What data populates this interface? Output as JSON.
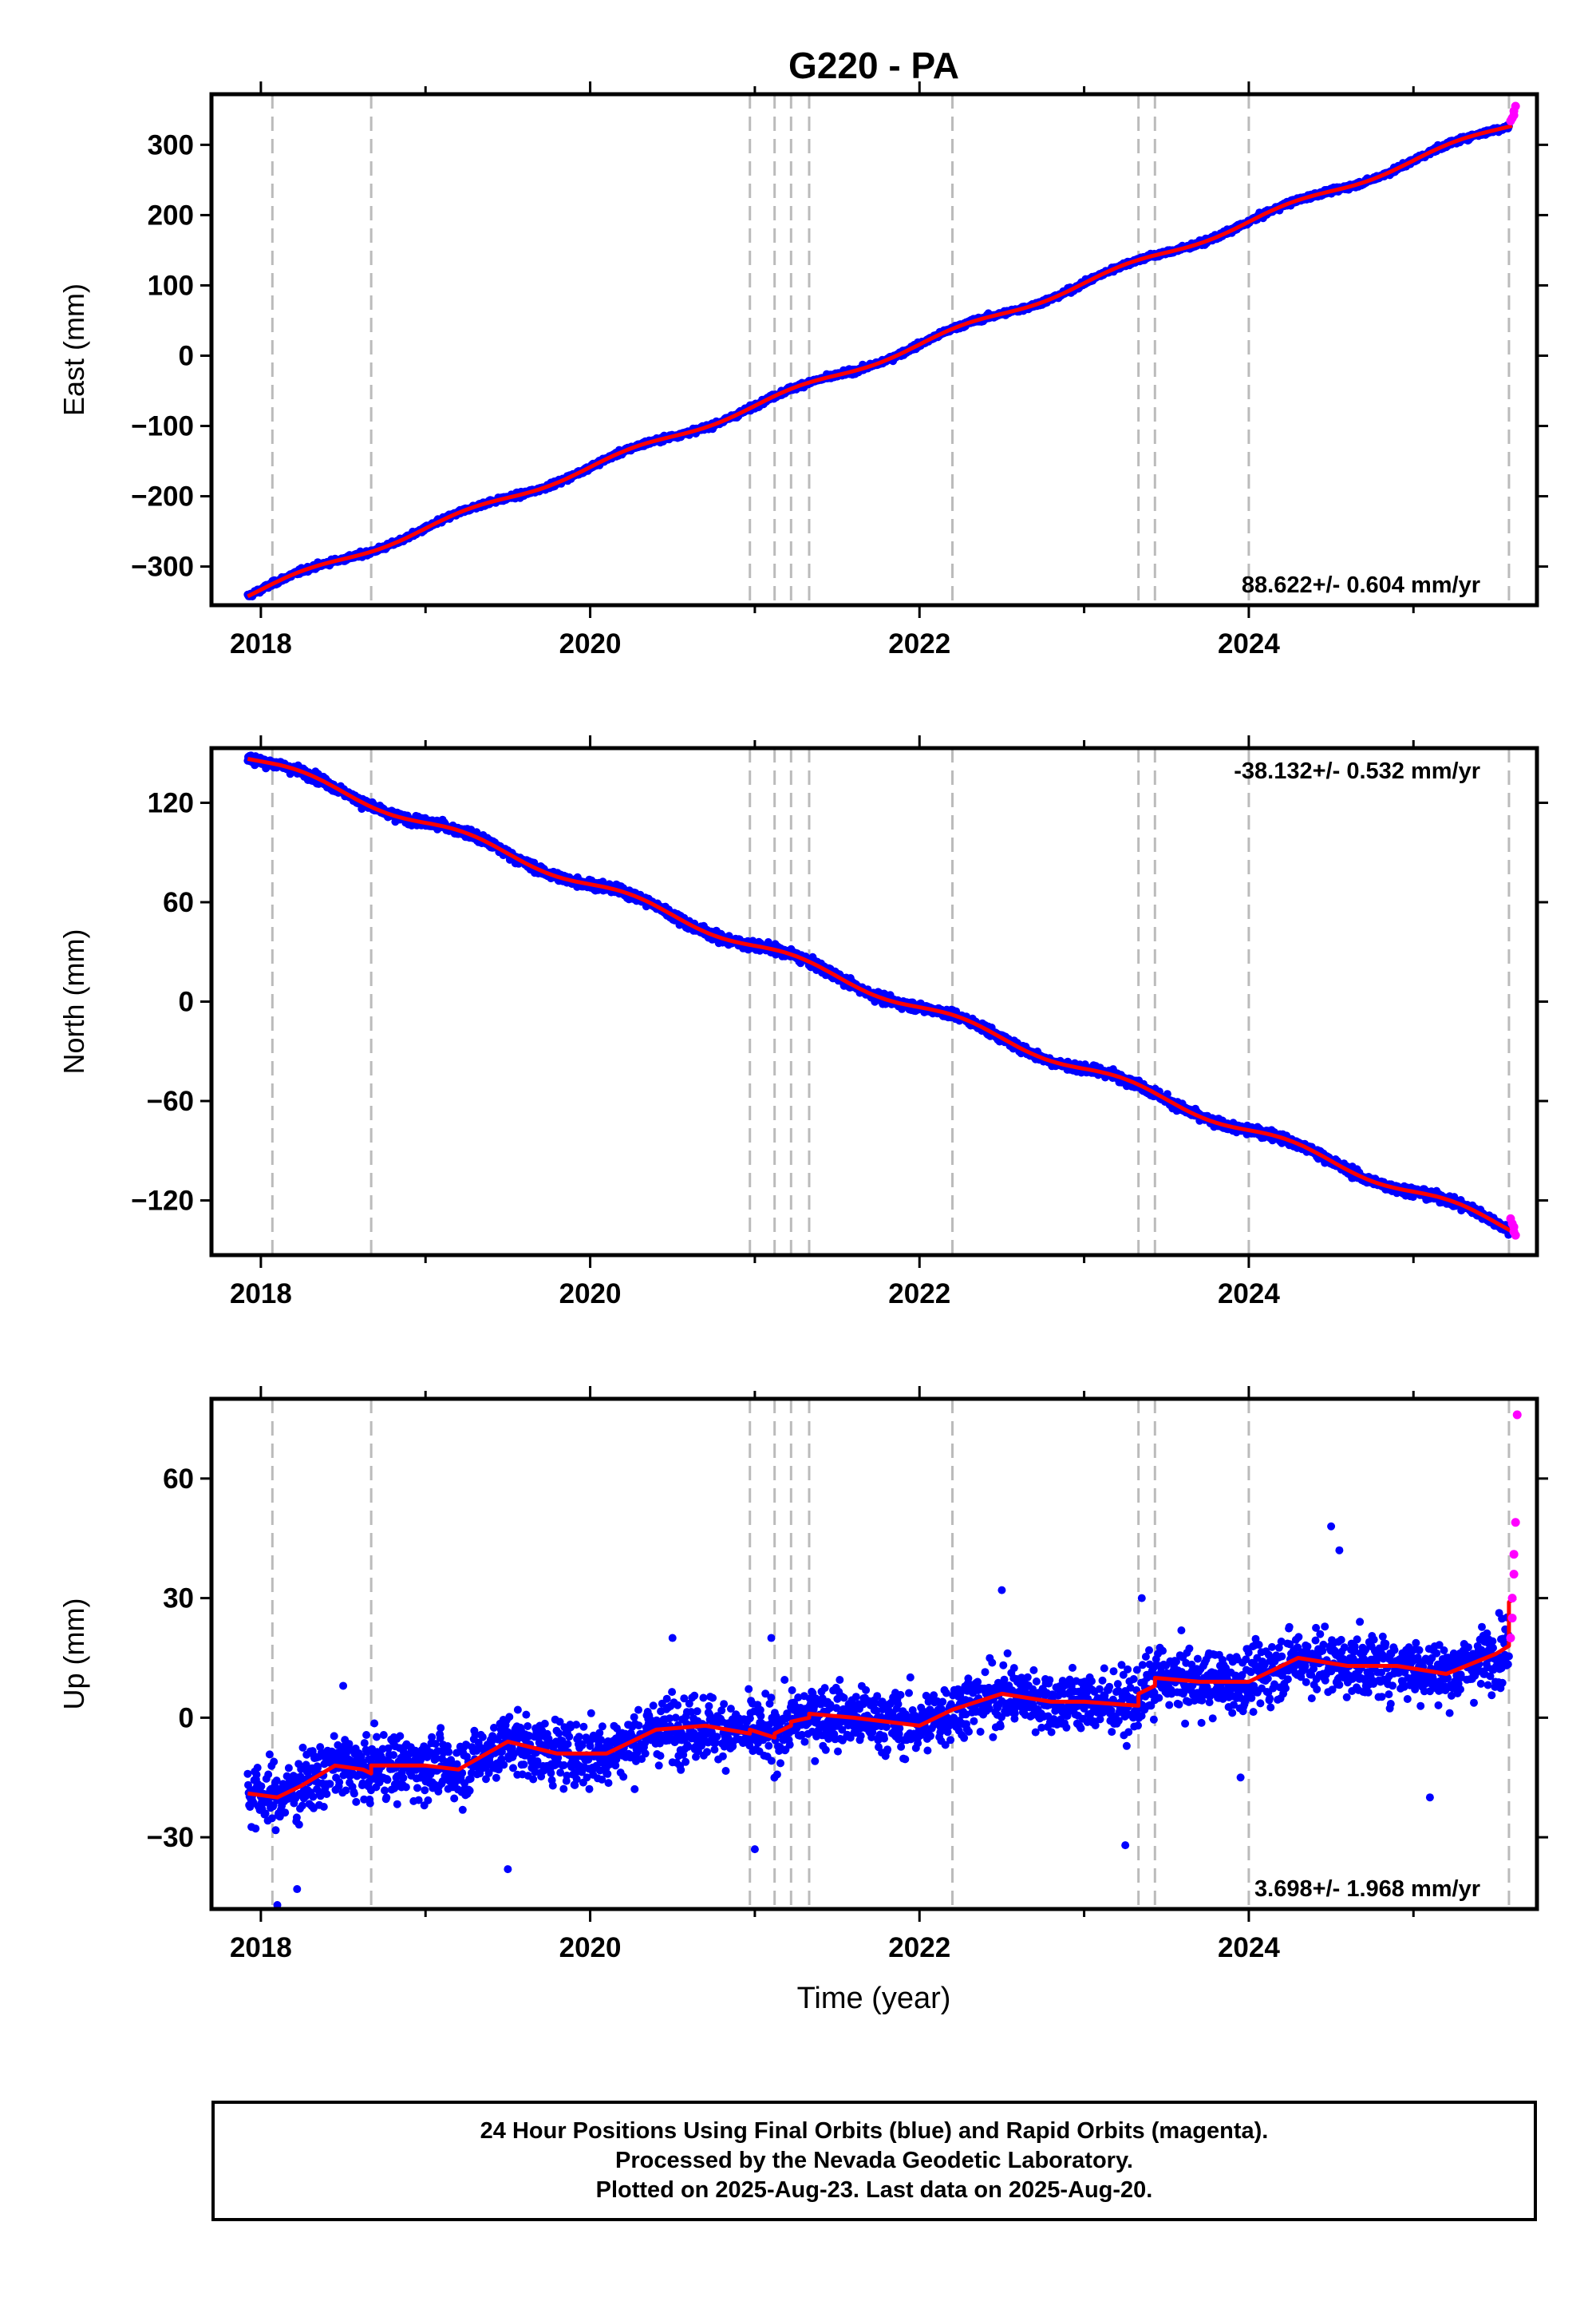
{
  "title": "G220 - PA",
  "xlabel": "Time (year)",
  "caption": [
    "24 Hour Positions Using Final Orbits (blue) and Rapid Orbits (magenta).",
    "Processed by the Nevada Geodetic Laboratory.",
    "Plotted on 2025-Aug-23. Last data on 2025-Aug-20."
  ],
  "colors": {
    "final": "#0000ff",
    "rapid": "#ff00ff",
    "model": "#ff0000",
    "event_lines": "#bbbbbb"
  },
  "chart_data": [
    {
      "type": "scatter",
      "name": "east",
      "ylabel": "East (mm)",
      "rate_label": "88.622+/- 0.604 mm/yr",
      "rate_position": "bottom-right",
      "xlim": [
        2017.7,
        2025.75
      ],
      "ylim": [
        -355,
        372
      ],
      "x_ticks": [
        2018,
        2020,
        2022,
        2024
      ],
      "y_ticks": [
        -300,
        -200,
        -100,
        0,
        100,
        200,
        300
      ],
      "y_tick_labels": [
        "−300",
        "−200",
        "−100",
        "0",
        "100",
        "200",
        "300"
      ],
      "event_lines_x": [
        2018.07,
        2018.67,
        2020.97,
        2021.12,
        2021.22,
        2021.33,
        2022.2,
        2023.33,
        2023.43,
        2024.0,
        2025.58
      ],
      "trend_start": [
        2017.92,
        -340
      ],
      "trend_end": [
        2025.6,
        330
      ],
      "scatter_sd": 2.5,
      "rapid_points": [
        [
          2025.59,
          334
        ],
        [
          2025.6,
          338
        ],
        [
          2025.61,
          342
        ],
        [
          2025.61,
          348
        ],
        [
          2025.62,
          355
        ]
      ]
    },
    {
      "type": "scatter",
      "name": "north",
      "ylabel": "North (mm)",
      "rate_label": "-38.132+/- 0.532 mm/yr",
      "rate_position": "top-right",
      "xlim": [
        2017.7,
        2025.75
      ],
      "ylim": [
        -153,
        153
      ],
      "x_ticks": [
        2018,
        2020,
        2022,
        2024
      ],
      "y_ticks": [
        -120,
        -60,
        0,
        60,
        120
      ],
      "y_tick_labels": [
        "−120",
        "−60",
        "0",
        "60",
        "120"
      ],
      "event_lines_x": [
        2018.07,
        2018.67,
        2020.97,
        2021.12,
        2021.22,
        2021.33,
        2022.2,
        2023.33,
        2023.43,
        2024.0,
        2025.58
      ],
      "trend_start": [
        2017.92,
        148
      ],
      "trend_end": [
        2025.6,
        -137
      ],
      "scatter_sd": 2,
      "rapid_points": [
        [
          2025.59,
          -131
        ],
        [
          2025.6,
          -134
        ],
        [
          2025.61,
          -136
        ],
        [
          2025.61,
          -139
        ],
        [
          2025.62,
          -141
        ]
      ]
    },
    {
      "type": "scatter",
      "name": "up",
      "ylabel": "Up (mm)",
      "rate_label": "3.698+/- 1.968 mm/yr",
      "rate_position": "bottom-right",
      "xlim": [
        2017.7,
        2025.75
      ],
      "ylim": [
        -48,
        80
      ],
      "x_ticks": [
        2018,
        2020,
        2022,
        2024
      ],
      "y_ticks": [
        -30,
        0,
        30,
        60
      ],
      "y_tick_labels": [
        "−30",
        "0",
        "30",
        "60"
      ],
      "event_lines_x": [
        2018.07,
        2018.67,
        2020.97,
        2021.12,
        2021.22,
        2021.33,
        2022.2,
        2023.33,
        2023.43,
        2024.0,
        2025.58
      ],
      "scatter_sd": 5.5,
      "model_x": [
        2017.92,
        2018.1,
        2018.25,
        2018.45,
        2018.62,
        2018.67,
        2018.67,
        2019.0,
        2019.2,
        2019.5,
        2019.8,
        2020.1,
        2020.4,
        2020.7,
        2020.97,
        2020.97,
        2021.12,
        2021.12,
        2021.22,
        2021.22,
        2021.33,
        2021.33,
        2021.6,
        2022.0,
        2022.2,
        2022.5,
        2022.8,
        2023.0,
        2023.33,
        2023.33,
        2023.43,
        2023.43,
        2023.7,
        2024.0,
        2024.3,
        2024.6,
        2024.9,
        2025.2,
        2025.5,
        2025.58,
        2025.58,
        2025.62
      ],
      "model_y": [
        -19,
        -20,
        -17,
        -12,
        -13,
        -14,
        -12,
        -12,
        -13,
        -6,
        -9,
        -9,
        -3,
        -2,
        -4,
        -3,
        -5,
        -4,
        -2,
        -1,
        0,
        1,
        0,
        -2,
        2,
        6,
        4,
        4,
        3,
        6,
        8,
        10,
        9,
        9,
        15,
        13,
        13,
        11,
        16,
        18,
        29,
        30
      ],
      "outliers": [
        [
          2018.1,
          -47
        ],
        [
          2018.22,
          -43
        ],
        [
          2018.5,
          8
        ],
        [
          2019.5,
          -38
        ],
        [
          2020.5,
          20
        ],
        [
          2021.0,
          -33
        ],
        [
          2021.1,
          20
        ],
        [
          2022.5,
          32
        ],
        [
          2023.25,
          -32
        ],
        [
          2023.35,
          30
        ],
        [
          2023.95,
          -15
        ],
        [
          2024.5,
          48
        ],
        [
          2024.55,
          42
        ],
        [
          2025.1,
          -20
        ]
      ],
      "rapid_points": [
        [
          2025.59,
          20
        ],
        [
          2025.6,
          25
        ],
        [
          2025.6,
          30
        ],
        [
          2025.61,
          36
        ],
        [
          2025.61,
          41
        ],
        [
          2025.62,
          49
        ],
        [
          2025.63,
          76
        ]
      ]
    }
  ]
}
